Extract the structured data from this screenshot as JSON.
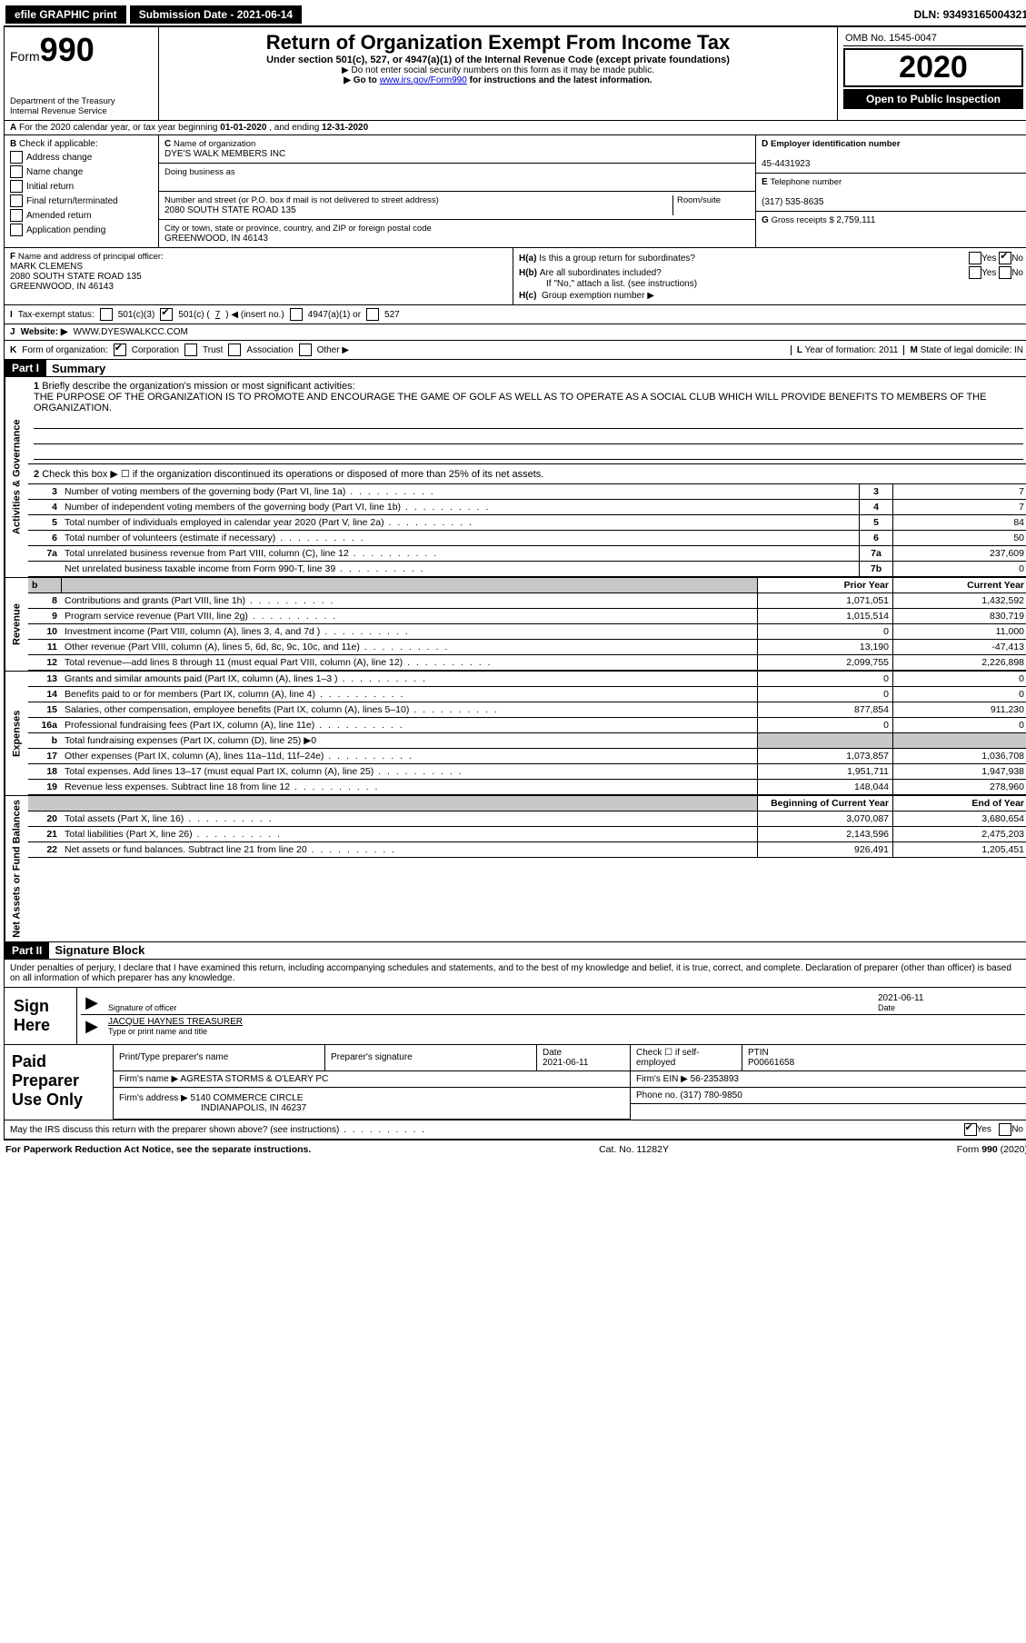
{
  "top": {
    "efile": "efile GRAPHIC print",
    "subdate_label": "Submission Date - ",
    "subdate": "2021-06-14",
    "dln_label": "DLN: ",
    "dln": "93493165004321"
  },
  "header": {
    "form_word": "Form",
    "form_num": "990",
    "dept1": "Department of the Treasury",
    "dept2": "Internal Revenue Service",
    "title": "Return of Organization Exempt From Income Tax",
    "sub1": "Under section 501(c), 527, or 4947(a)(1) of the Internal Revenue Code (except private foundations)",
    "sub2": "Do not enter social security numbers on this form as it may be made public.",
    "sub3_pre": "Go to ",
    "sub3_link": "www.irs.gov/Form990",
    "sub3_post": " for instructions and the latest information.",
    "omb": "OMB No. 1545-0047",
    "year": "2020",
    "open": "Open to Public Inspection"
  },
  "A": {
    "text_pre": "For the 2020 calendar year, or tax year beginning ",
    "begin": "01-01-2020",
    "mid": " , and ending ",
    "end": "12-31-2020"
  },
  "B": {
    "title": "Check if applicable:",
    "opts": [
      "Address change",
      "Name change",
      "Initial return",
      "Final return/terminated",
      "Amended return",
      "Application pending"
    ]
  },
  "C": {
    "name_label": "Name of organization",
    "name": "DYE'S WALK MEMBERS INC",
    "dba_label": "Doing business as",
    "dba": "",
    "addr_label": "Number and street (or P.O. box if mail is not delivered to street address)",
    "room_label": "Room/suite",
    "addr": "2080 SOUTH STATE ROAD 135",
    "city_label": "City or town, state or province, country, and ZIP or foreign postal code",
    "city": "GREENWOOD, IN  46143"
  },
  "D": {
    "label": "Employer identification number",
    "val": "45-4431923"
  },
  "E": {
    "label": "Telephone number",
    "val": "(317) 535-8635"
  },
  "G": {
    "label": "Gross receipts $ ",
    "val": "2,759,111"
  },
  "F": {
    "label": "Name and address of principal officer:",
    "name": "MARK CLEMENS",
    "addr1": "2080 SOUTH STATE ROAD 135",
    "addr2": "GREENWOOD, IN  46143"
  },
  "H": {
    "a": "Is this a group return for subordinates?",
    "b": "Are all subordinates included?",
    "b_note": "If \"No,\" attach a list. (see instructions)",
    "c": "Group exemption number ▶",
    "yes": "Yes",
    "no": "No"
  },
  "I": {
    "label": "Tax-exempt status:",
    "c3": "501(c)(3)",
    "c_open": "501(c) ( ",
    "c_num": "7",
    "c_close": " ) ◀ (insert no.)",
    "a1": "4947(a)(1) or",
    "s527": "527"
  },
  "J": {
    "label": "Website: ▶",
    "val": "WWW.DYESWALKCC.COM"
  },
  "K": {
    "label": "Form of organization:",
    "opts": [
      "Corporation",
      "Trust",
      "Association",
      "Other ▶"
    ]
  },
  "L": {
    "label": "Year of formation: ",
    "val": "2011"
  },
  "M": {
    "label": "State of legal domicile: ",
    "val": "IN"
  },
  "partI": {
    "num": "Part I",
    "title": "Summary"
  },
  "mission": {
    "q": "Briefly describe the organization's mission or most significant activities:",
    "text": "THE PURPOSE OF THE ORGANIZATION IS TO PROMOTE AND ENCOURAGE THE GAME OF GOLF AS WELL AS TO OPERATE AS A SOCIAL CLUB WHICH WILL PROVIDE BENEFITS TO MEMBERS OF THE ORGANIZATION."
  },
  "line2": "Check this box ▶ ☐ if the organization discontinued its operations or disposed of more than 25% of its net assets.",
  "vtabs": {
    "act": "Activities & Governance",
    "rev": "Revenue",
    "exp": "Expenses",
    "net": "Net Assets or Fund Balances"
  },
  "gov_rows": [
    {
      "n": "3",
      "desc": "Number of voting members of the governing body (Part VI, line 1a)",
      "box": "3",
      "v": "7"
    },
    {
      "n": "4",
      "desc": "Number of independent voting members of the governing body (Part VI, line 1b)",
      "box": "4",
      "v": "7"
    },
    {
      "n": "5",
      "desc": "Total number of individuals employed in calendar year 2020 (Part V, line 2a)",
      "box": "5",
      "v": "84"
    },
    {
      "n": "6",
      "desc": "Total number of volunteers (estimate if necessary)",
      "box": "6",
      "v": "50"
    },
    {
      "n": "7a",
      "desc": "Total unrelated business revenue from Part VIII, column (C), line 12",
      "box": "7a",
      "v": "237,609"
    },
    {
      "n": "",
      "desc": "Net unrelated business taxable income from Form 990-T, line 39",
      "box": "7b",
      "v": "0"
    }
  ],
  "cols": {
    "prior": "Prior Year",
    "current": "Current Year",
    "begin": "Beginning of Current Year",
    "end": "End of Year"
  },
  "rev_rows": [
    {
      "n": "8",
      "desc": "Contributions and grants (Part VIII, line 1h)",
      "p": "1,071,051",
      "c": "1,432,592"
    },
    {
      "n": "9",
      "desc": "Program service revenue (Part VIII, line 2g)",
      "p": "1,015,514",
      "c": "830,719"
    },
    {
      "n": "10",
      "desc": "Investment income (Part VIII, column (A), lines 3, 4, and 7d )",
      "p": "0",
      "c": "11,000"
    },
    {
      "n": "11",
      "desc": "Other revenue (Part VIII, column (A), lines 5, 6d, 8c, 9c, 10c, and 11e)",
      "p": "13,190",
      "c": "-47,413"
    },
    {
      "n": "12",
      "desc": "Total revenue—add lines 8 through 11 (must equal Part VIII, column (A), line 12)",
      "p": "2,099,755",
      "c": "2,226,898"
    }
  ],
  "exp_rows": [
    {
      "n": "13",
      "desc": "Grants and similar amounts paid (Part IX, column (A), lines 1–3 )",
      "p": "0",
      "c": "0"
    },
    {
      "n": "14",
      "desc": "Benefits paid to or for members (Part IX, column (A), line 4)",
      "p": "0",
      "c": "0"
    },
    {
      "n": "15",
      "desc": "Salaries, other compensation, employee benefits (Part IX, column (A), lines 5–10)",
      "p": "877,854",
      "c": "911,230"
    },
    {
      "n": "16a",
      "desc": "Professional fundraising fees (Part IX, column (A), line 11e)",
      "p": "0",
      "c": "0"
    },
    {
      "n": "b",
      "desc": "Total fundraising expenses (Part IX, column (D), line 25) ▶0",
      "p": "",
      "c": "",
      "grey": true
    },
    {
      "n": "17",
      "desc": "Other expenses (Part IX, column (A), lines 11a–11d, 11f–24e)",
      "p": "1,073,857",
      "c": "1,036,708"
    },
    {
      "n": "18",
      "desc": "Total expenses. Add lines 13–17 (must equal Part IX, column (A), line 25)",
      "p": "1,951,711",
      "c": "1,947,938"
    },
    {
      "n": "19",
      "desc": "Revenue less expenses. Subtract line 18 from line 12",
      "p": "148,044",
      "c": "278,960"
    }
  ],
  "net_rows": [
    {
      "n": "20",
      "desc": "Total assets (Part X, line 16)",
      "p": "3,070,087",
      "c": "3,680,654"
    },
    {
      "n": "21",
      "desc": "Total liabilities (Part X, line 26)",
      "p": "2,143,596",
      "c": "2,475,203"
    },
    {
      "n": "22",
      "desc": "Net assets or fund balances. Subtract line 21 from line 20",
      "p": "926,491",
      "c": "1,205,451"
    }
  ],
  "partII": {
    "num": "Part II",
    "title": "Signature Block"
  },
  "penalties": "Under penalties of perjury, I declare that I have examined this return, including accompanying schedules and statements, and to the best of my knowledge and belief, it is true, correct, and complete. Declaration of preparer (other than officer) is based on all information of which preparer has any knowledge.",
  "sign": {
    "here": "Sign Here",
    "sig_label": "Signature of officer",
    "date_label": "Date",
    "date": "2021-06-11",
    "name": "JACQUE HAYNES  TREASURER",
    "name_label": "Type or print name and title"
  },
  "prep": {
    "title": "Paid Preparer Use Only",
    "h1": "Print/Type preparer's name",
    "h2": "Preparer's signature",
    "h3": "Date",
    "h3v": "2021-06-11",
    "h4": "Check ☐ if self-employed",
    "h5": "PTIN",
    "h5v": "P00661658",
    "firm_label": "Firm's name    ▶",
    "firm": "AGRESTA STORMS & O'LEARY PC",
    "ein_label": "Firm's EIN ▶ ",
    "ein": "56-2353893",
    "addr_label": "Firm's address ▶",
    "addr1": "5140 COMMERCE CIRCLE",
    "addr2": "INDIANAPOLIS, IN  46237",
    "phone_label": "Phone no. ",
    "phone": "(317) 780-9850"
  },
  "discuss": {
    "q": "May the IRS discuss this return with the preparer shown above? (see instructions)",
    "yes": "Yes",
    "no": "No"
  },
  "footer": {
    "left": "For Paperwork Reduction Act Notice, see the separate instructions.",
    "mid": "Cat. No. 11282Y",
    "right": "Form 990 (2020)"
  },
  "b_label": "b",
  "letters": {
    "A": "A",
    "B": "B",
    "C": "C",
    "D": "D",
    "E": "E",
    "F": "F",
    "G": "G",
    "H_a": "H(a)",
    "H_b": "H(b)",
    "H_c": "H(c)",
    "I": "I",
    "J": "J",
    "K": "K",
    "L": "L",
    "M": "M"
  }
}
